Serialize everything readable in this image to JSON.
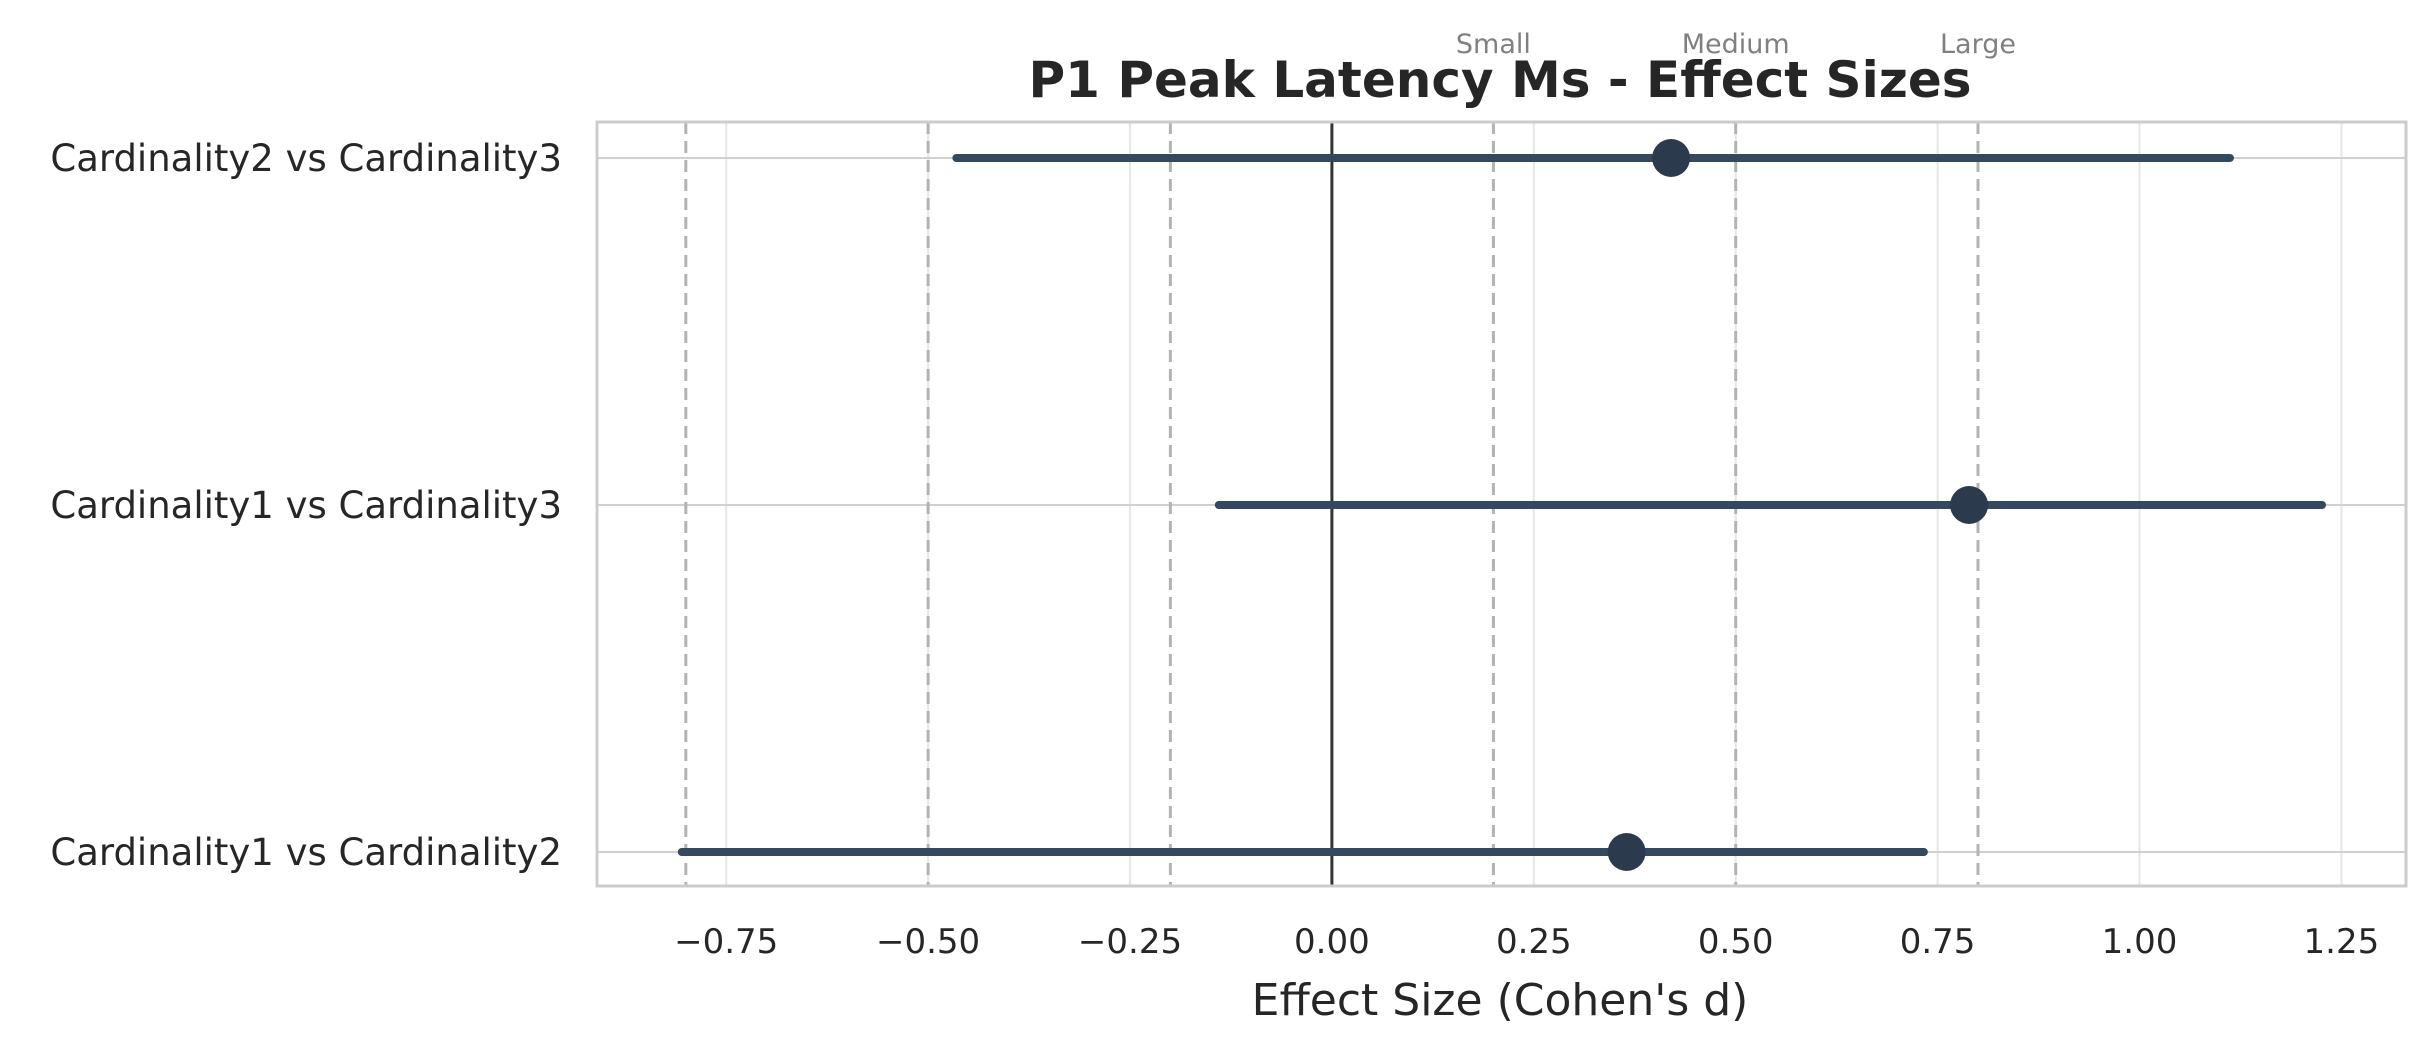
{
  "chart_data": {
    "type": "forest",
    "title": "P1 Peak Latency Ms - Effect Sizes",
    "xlabel": "Effect Size (Cohen's d)",
    "ylabel": "",
    "xlim": [
      -0.91,
      1.33
    ],
    "xticks": [
      -0.75,
      -0.5,
      -0.25,
      0.0,
      0.25,
      0.5,
      0.75,
      1.0,
      1.25
    ],
    "xtick_labels": [
      "−0.75",
      "−0.50",
      "−0.25",
      "0.00",
      "0.25",
      "0.50",
      "0.75",
      "1.00",
      "1.25"
    ],
    "grid": true,
    "categories": [
      "Cardinality2 vs Cardinality3",
      "Cardinality1 vs Cardinality3",
      "Cardinality1 vs Cardinality2"
    ],
    "effects": [
      0.42,
      0.789,
      0.365
    ],
    "ci_lower": [
      -0.465,
      -0.14,
      -0.805
    ],
    "ci_upper": [
      1.112,
      1.226,
      0.733
    ],
    "reference_lines": [
      -0.8,
      -0.5,
      -0.2,
      0.2,
      0.5,
      0.8
    ],
    "zero_line": 0,
    "annotations": [
      {
        "text": "Small",
        "x": 0.2
      },
      {
        "text": "Medium",
        "x": 0.5
      },
      {
        "text": "Large",
        "x": 0.8
      }
    ],
    "colors": {
      "marker": "#2b3a4d",
      "ci": "#34495e",
      "zero": "#333333",
      "reference": "#b3b3b3",
      "grid": "#e6e6e6",
      "frame": "#cccccc"
    }
  }
}
